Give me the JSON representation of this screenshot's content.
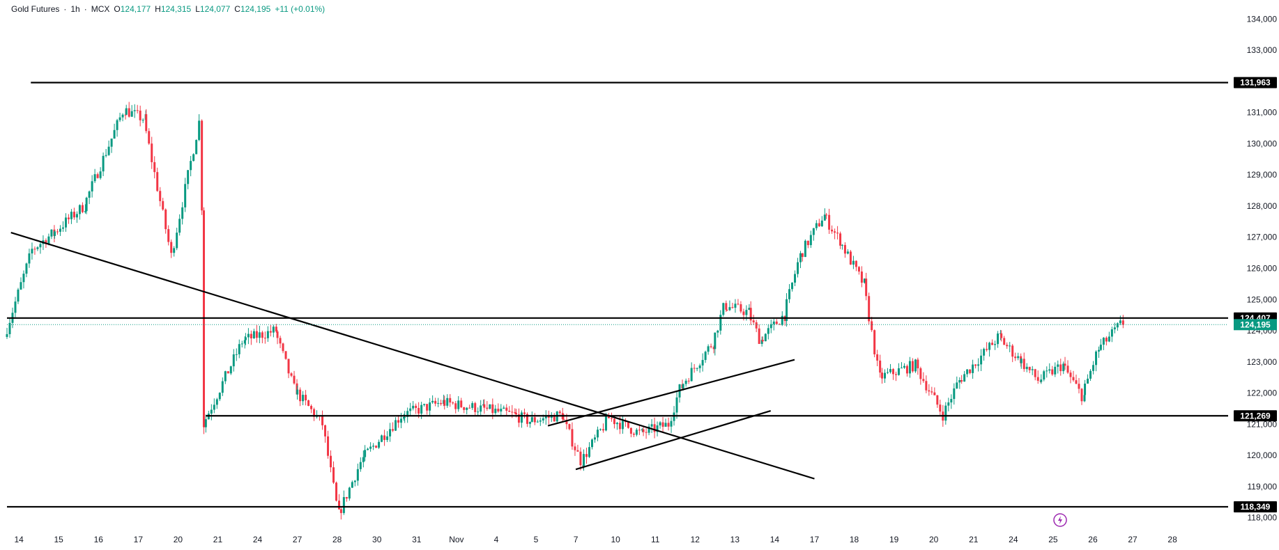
{
  "header": {
    "symbol": "Gold Futures",
    "interval": "1h",
    "exchange": "MCX",
    "open_label": "O",
    "open": "124,177",
    "high_label": "H",
    "high": "124,315",
    "low_label": "L",
    "low": "124,077",
    "close_label": "C",
    "close": "124,195",
    "change": "+11 (+0.01%)"
  },
  "colors": {
    "up": "#089981",
    "down": "#f23645",
    "line": "#000000",
    "last_price": "#089981",
    "icon": "#9c27b0"
  },
  "chart_data": {
    "type": "candlestick",
    "timeframe": "1h",
    "x_ticks": [
      "14",
      "15",
      "16",
      "17",
      "20",
      "21",
      "24",
      "27",
      "28",
      "30",
      "31",
      "Nov",
      "4",
      "5",
      "7",
      "10",
      "11",
      "12",
      "13",
      "14",
      "17",
      "18",
      "19",
      "20",
      "21",
      "24",
      "25",
      "26",
      "27",
      "28"
    ],
    "y_ticks": [
      "118,000",
      "119,000",
      "120,000",
      "121,000",
      "122,000",
      "123,000",
      "124,000",
      "125,000",
      "126,000",
      "127,000",
      "128,000",
      "129,000",
      "130,000",
      "131,000",
      "132,000",
      "133,000",
      "134,000"
    ],
    "ylim": [
      117700,
      134300
    ],
    "xlim_index": [
      0,
      30.7
    ],
    "last_price": {
      "value": 124195,
      "label": "124,195"
    },
    "horizontal_levels": [
      {
        "value": 131963,
        "label": "131,963",
        "x_start_index": 0.6
      },
      {
        "value": 124407,
        "label": "124,407",
        "x_start_index": 0
      },
      {
        "value": 121269,
        "label": "121,269",
        "x_start_index": 5.0
      },
      {
        "value": 118349,
        "label": "118,349",
        "x_start_index": 0
      }
    ],
    "trendlines": [
      {
        "from": [
          0.1,
          127150
        ],
        "to": [
          20.3,
          119250
        ]
      },
      {
        "from": [
          13.6,
          120950
        ],
        "to": [
          19.8,
          123070
        ]
      },
      {
        "from": [
          14.3,
          119550
        ],
        "to": [
          19.2,
          121430
        ]
      }
    ],
    "session_anchors": [
      [
        0,
        123800
      ],
      [
        0.7,
        126600
      ],
      [
        1.2,
        127100
      ],
      [
        2.0,
        128000
      ],
      [
        3.0,
        131100
      ],
      [
        3.5,
        130800
      ],
      [
        4.2,
        126400
      ],
      [
        4.9,
        130700
      ],
      [
        4.95,
        128000
      ],
      [
        5.0,
        121000
      ],
      [
        6.0,
        123700
      ],
      [
        6.8,
        124000
      ],
      [
        7.3,
        122100
      ],
      [
        8.0,
        121000
      ],
      [
        8.4,
        118100
      ],
      [
        9.0,
        119900
      ],
      [
        10.0,
        121300
      ],
      [
        11.0,
        121700
      ],
      [
        12.0,
        121500
      ],
      [
        12.8,
        121300
      ],
      [
        13.2,
        121100
      ],
      [
        14.0,
        121300
      ],
      [
        14.5,
        119800
      ],
      [
        15.2,
        121200
      ],
      [
        16.0,
        120700
      ],
      [
        16.7,
        121000
      ],
      [
        17.0,
        122200
      ],
      [
        17.8,
        123600
      ],
      [
        18.1,
        124800
      ],
      [
        18.7,
        124600
      ],
      [
        19.0,
        123700
      ],
      [
        19.6,
        124500
      ],
      [
        20.0,
        126400
      ],
      [
        20.6,
        127700
      ],
      [
        21.0,
        126900
      ],
      [
        21.6,
        125500
      ],
      [
        22.0,
        122500
      ],
      [
        22.9,
        122900
      ],
      [
        23.6,
        121300
      ],
      [
        24.0,
        122400
      ],
      [
        25.0,
        123800
      ],
      [
        25.5,
        123100
      ],
      [
        26.0,
        122400
      ],
      [
        26.6,
        122900
      ],
      [
        27.1,
        121900
      ],
      [
        27.5,
        123400
      ],
      [
        28.1,
        124250
      ]
    ],
    "series_name": ""
  }
}
